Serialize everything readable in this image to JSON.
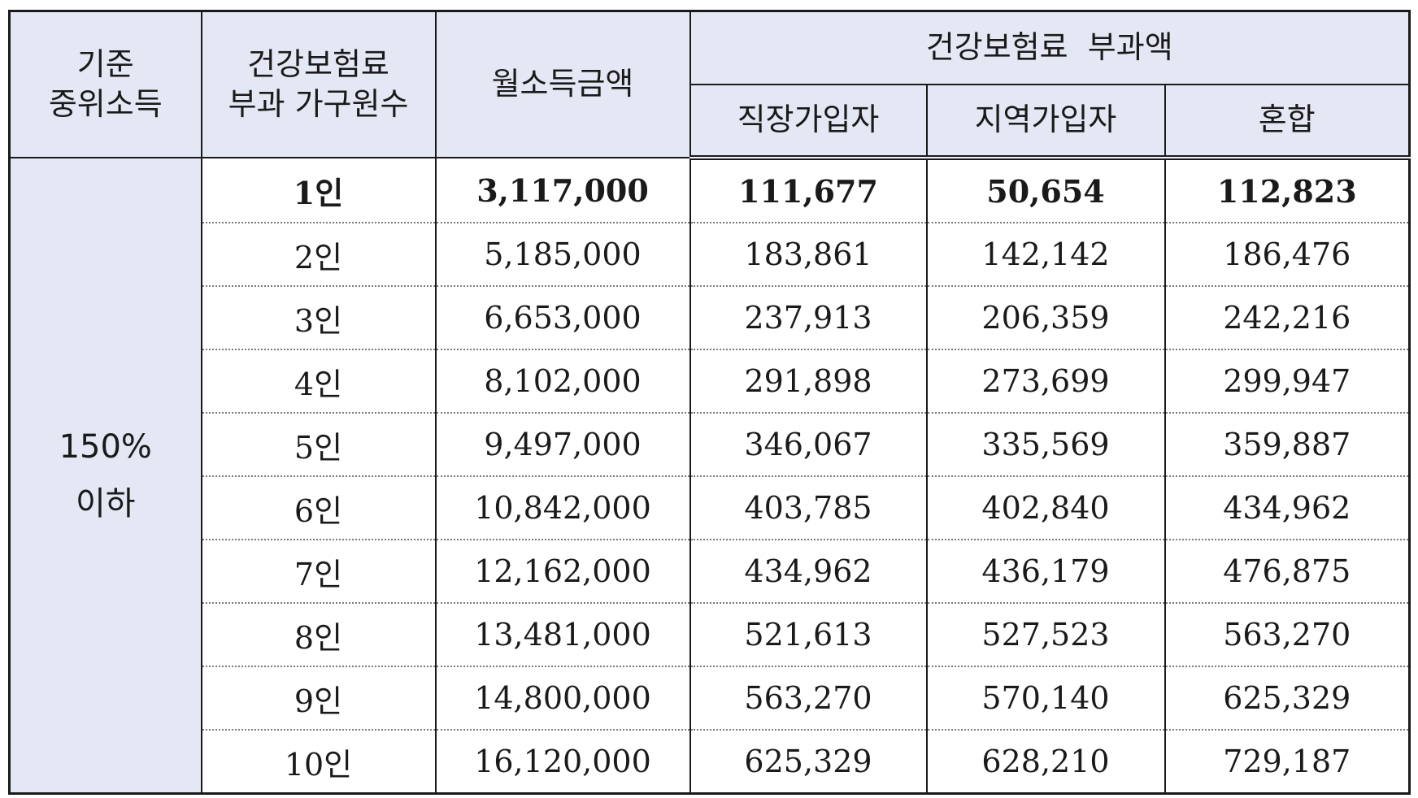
{
  "table": {
    "headers": {
      "median_income": "기준\n중위소득",
      "household_size": "건강보험료\n부과 가구원수",
      "monthly_income": "월소득금액",
      "premium_group": "건강보험료  부과액",
      "employee": "직장가입자",
      "regional": "지역가입자",
      "mixed": "혼합"
    },
    "threshold": "150%\n이하",
    "rows": [
      {
        "size": "1인",
        "income": "3,117,000",
        "employee": "111,677",
        "regional": "50,654",
        "mixed": "112,823",
        "bold": true
      },
      {
        "size": "2인",
        "income": "5,185,000",
        "employee": "183,861",
        "regional": "142,142",
        "mixed": "186,476"
      },
      {
        "size": "3인",
        "income": "6,653,000",
        "employee": "237,913",
        "regional": "206,359",
        "mixed": "242,216"
      },
      {
        "size": "4인",
        "income": "8,102,000",
        "employee": "291,898",
        "regional": "273,699",
        "mixed": "299,947"
      },
      {
        "size": "5인",
        "income": "9,497,000",
        "employee": "346,067",
        "regional": "335,569",
        "mixed": "359,887"
      },
      {
        "size": "6인",
        "income": "10,842,000",
        "employee": "403,785",
        "regional": "402,840",
        "mixed": "434,962"
      },
      {
        "size": "7인",
        "income": "12,162,000",
        "employee": "434,962",
        "regional": "436,179",
        "mixed": "476,875"
      },
      {
        "size": "8인",
        "income": "13,481,000",
        "employee": "521,613",
        "regional": "527,523",
        "mixed": "563,270"
      },
      {
        "size": "9인",
        "income": "14,800,000",
        "employee": "563,270",
        "regional": "570,140",
        "mixed": "625,329"
      },
      {
        "size": "10인",
        "income": "16,120,000",
        "employee": "625,329",
        "regional": "628,210",
        "mixed": "729,187"
      }
    ]
  }
}
